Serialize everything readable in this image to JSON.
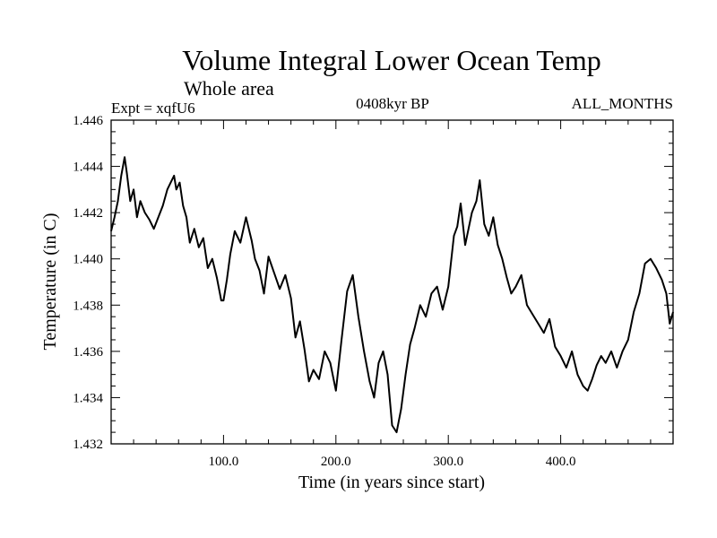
{
  "chart_data": {
    "type": "line",
    "title": "Volume Integral Lower Ocean Temp",
    "subtitle": "Whole area",
    "left_label": "Expt = xqfU6",
    "center_label": "0408kyr BP",
    "right_label": "ALL_MONTHS",
    "xlabel": "Time (in years since start)",
    "ylabel": "Temperature (in C)",
    "xlim": [
      0,
      500
    ],
    "ylim": [
      1.432,
      1.446
    ],
    "x_ticks": [
      100,
      200,
      300,
      400
    ],
    "x_tick_labels": [
      "100.0",
      "200.0",
      "300.0",
      "400.0"
    ],
    "y_ticks": [
      1.432,
      1.434,
      1.436,
      1.438,
      1.44,
      1.442,
      1.444,
      1.446
    ],
    "y_tick_labels": [
      "1.432",
      "1.434",
      "1.436",
      "1.438",
      "1.440",
      "1.442",
      "1.444",
      "1.446"
    ],
    "grid": false,
    "series": [
      {
        "name": "Volume integral lower ocean temperature",
        "color": "#000000",
        "x": [
          0,
          3,
          6,
          9,
          12,
          14,
          17,
          20,
          23,
          26,
          30,
          34,
          38,
          42,
          46,
          50,
          53,
          56,
          58,
          61,
          64,
          67,
          70,
          74,
          78,
          82,
          86,
          90,
          94,
          98,
          100,
          103,
          106,
          110,
          115,
          120,
          125,
          128,
          132,
          136,
          140,
          145,
          150,
          155,
          160,
          164,
          168,
          172,
          176,
          180,
          185,
          190,
          195,
          200,
          205,
          210,
          215,
          220,
          225,
          230,
          234,
          238,
          242,
          246,
          250,
          254,
          258,
          262,
          266,
          270,
          275,
          280,
          285,
          290,
          295,
          300,
          305,
          308,
          311,
          315,
          318,
          321,
          325,
          328,
          332,
          336,
          340,
          344,
          348,
          352,
          356,
          360,
          365,
          370,
          375,
          380,
          385,
          390,
          395,
          400,
          405,
          410,
          415,
          420,
          424,
          428,
          432,
          436,
          440,
          445,
          450,
          455,
          460,
          465,
          470,
          475,
          480,
          485,
          490,
          494,
          497,
          500
        ],
        "values": [
          1.4412,
          1.4418,
          1.4425,
          1.4436,
          1.4444,
          1.4437,
          1.4425,
          1.443,
          1.4418,
          1.4425,
          1.442,
          1.4417,
          1.4413,
          1.4418,
          1.4423,
          1.443,
          1.4433,
          1.4436,
          1.443,
          1.4433,
          1.4423,
          1.4418,
          1.4407,
          1.4413,
          1.4405,
          1.4409,
          1.4396,
          1.44,
          1.4392,
          1.4382,
          1.4382,
          1.4391,
          1.4402,
          1.4412,
          1.4407,
          1.4418,
          1.4408,
          1.44,
          1.4395,
          1.4385,
          1.4401,
          1.4394,
          1.4387,
          1.4393,
          1.4383,
          1.4366,
          1.4373,
          1.4361,
          1.4347,
          1.4352,
          1.4348,
          1.436,
          1.4355,
          1.4343,
          1.4365,
          1.4386,
          1.4393,
          1.4375,
          1.436,
          1.4347,
          1.434,
          1.4355,
          1.436,
          1.435,
          1.4328,
          1.4325,
          1.4335,
          1.435,
          1.4363,
          1.437,
          1.438,
          1.4375,
          1.4385,
          1.4388,
          1.4378,
          1.4388,
          1.441,
          1.4414,
          1.4424,
          1.4406,
          1.4413,
          1.442,
          1.4425,
          1.4434,
          1.4415,
          1.441,
          1.4418,
          1.4406,
          1.44,
          1.4392,
          1.4385,
          1.4388,
          1.4393,
          1.438,
          1.4376,
          1.4372,
          1.4368,
          1.4374,
          1.4362,
          1.4358,
          1.4353,
          1.436,
          1.435,
          1.4345,
          1.4343,
          1.4348,
          1.4354,
          1.4358,
          1.4355,
          1.436,
          1.4353,
          1.436,
          1.4365,
          1.4377,
          1.4385,
          1.4398,
          1.44,
          1.4396,
          1.4391,
          1.4385,
          1.4372,
          1.4377
        ]
      }
    ]
  }
}
